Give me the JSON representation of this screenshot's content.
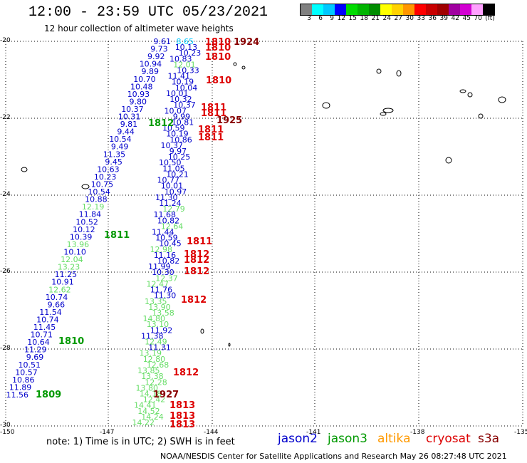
{
  "header": {
    "title": "12:00 - 23:59 UTC 05/23/2021",
    "subtitle": "12 hour collection of altimeter wave heights"
  },
  "colorbar": {
    "colors": [
      "#808080",
      "#00ffff",
      "#00c8ff",
      "#0000ff",
      "#00dc00",
      "#00b400",
      "#008c00",
      "#ffff00",
      "#ffd200",
      "#ff9600",
      "#ff0000",
      "#c80000",
      "#a00000",
      "#a000a0",
      "#d200d2",
      "#ffa0ff",
      "#000000"
    ],
    "labels": [
      "3",
      "6",
      "9",
      "12",
      "15",
      "18",
      "21",
      "24",
      "27",
      "30",
      "33",
      "36",
      "39",
      "42",
      "45",
      "70",
      "(ft)"
    ]
  },
  "axes": {
    "lat_labels": [
      "-20",
      "-22",
      "-24",
      "-26",
      "-28",
      "-30"
    ],
    "lon_labels": [
      "-150",
      "-147",
      "-144",
      "-141",
      "-138",
      "-135"
    ]
  },
  "legend": [
    {
      "name": "jason2",
      "color": "#0000cc"
    },
    {
      "name": "jason3",
      "color": "#009900"
    },
    {
      "name": "altika",
      "color": "#ff9900"
    },
    {
      "name": "cryosat",
      "color": "#dd0000"
    },
    {
      "name": "s3a",
      "color": "#880000"
    }
  ],
  "footer": {
    "note": "note: 1) Time is in UTC; 2) SWH is in feet",
    "credit": "NOAA/NESDIS Center for Satellite Applications and Research May 26 08:27:48 UTC 2021"
  },
  "track_a": {
    "color_default": "#0000cc",
    "values": [
      [
        "9.61",
        "#0000cc"
      ],
      [
        "9.73",
        "#0000cc"
      ],
      [
        "9.92",
        "#0000cc"
      ],
      [
        "10.94",
        "#0000cc"
      ],
      [
        "9.89",
        "#0000cc"
      ],
      [
        "10.70",
        "#0000cc"
      ],
      [
        "10.48",
        "#0000cc"
      ],
      [
        "10.93",
        "#0000cc"
      ],
      [
        "9.80",
        "#0000cc"
      ],
      [
        "10.37",
        "#0000cc"
      ],
      [
        "10.31",
        "#0000cc"
      ],
      [
        "9.81",
        "#0000cc"
      ],
      [
        "9.44",
        "#0000cc"
      ],
      [
        "10.54",
        "#0000cc"
      ],
      [
        "9.49",
        "#0000cc"
      ],
      [
        "11.35",
        "#0000cc"
      ],
      [
        "9.45",
        "#0000cc"
      ],
      [
        "10.63",
        "#0000cc"
      ],
      [
        "10.23",
        "#0000cc"
      ],
      [
        "10.75",
        "#0000cc"
      ],
      [
        "10.54",
        "#0000cc"
      ],
      [
        "10.88",
        "#0000cc"
      ],
      [
        "12.19",
        "#66dd66"
      ],
      [
        "11.84",
        "#0000cc"
      ],
      [
        "10.52",
        "#0000cc"
      ],
      [
        "10.12",
        "#0000cc"
      ],
      [
        "10.39",
        "#0000cc"
      ],
      [
        "13.96",
        "#66dd66"
      ],
      [
        "10.10",
        "#0000cc"
      ],
      [
        "12.04",
        "#66dd66"
      ],
      [
        "13.23",
        "#66dd66"
      ],
      [
        "11.25",
        "#0000cc"
      ],
      [
        "10.91",
        "#0000cc"
      ],
      [
        "12.62",
        "#66dd66"
      ],
      [
        "10.74",
        "#0000cc"
      ],
      [
        "9.66",
        "#0000cc"
      ],
      [
        "11.54",
        "#0000cc"
      ],
      [
        "10.74",
        "#0000cc"
      ],
      [
        "11.45",
        "#0000cc"
      ],
      [
        "10.71",
        "#0000cc"
      ],
      [
        "10.64",
        "#0000cc"
      ],
      [
        "11.29",
        "#0000cc"
      ],
      [
        "9.69",
        "#0000cc"
      ],
      [
        "10.51",
        "#0000cc"
      ],
      [
        "10.57",
        "#0000cc"
      ],
      [
        "10.86",
        "#0000cc"
      ],
      [
        "11.89",
        "#0000cc"
      ],
      [
        "11.56",
        "#0000cc"
      ]
    ]
  },
  "track_b": {
    "values": [
      [
        "8.65",
        "#00c8ff"
      ],
      [
        "10.13",
        "#0000cc"
      ],
      [
        "10.23",
        "#0000cc"
      ],
      [
        "10.83",
        "#0000cc"
      ],
      [
        "12.01",
        "#66dd66"
      ],
      [
        "10.33",
        "#0000cc"
      ],
      [
        "11.41",
        "#0000cc"
      ],
      [
        "10.19",
        "#0000cc"
      ],
      [
        "10.04",
        "#0000cc"
      ],
      [
        "10.01",
        "#0000cc"
      ],
      [
        "10.32",
        "#0000cc"
      ],
      [
        "10.37",
        "#0000cc"
      ],
      [
        "10.07",
        "#0000cc"
      ],
      [
        "9.99",
        "#0000cc"
      ],
      [
        "10.81",
        "#0000cc"
      ],
      [
        "10.59",
        "#0000cc"
      ],
      [
        "10.19",
        "#0000cc"
      ],
      [
        "10.86",
        "#0000cc"
      ],
      [
        "10.37",
        "#0000cc"
      ],
      [
        "9.97",
        "#0000cc"
      ],
      [
        "10.25",
        "#0000cc"
      ],
      [
        "10.50",
        "#0000cc"
      ],
      [
        "11.05",
        "#0000cc"
      ],
      [
        "10.21",
        "#0000cc"
      ],
      [
        "10.77",
        "#0000cc"
      ],
      [
        "10.01",
        "#0000cc"
      ],
      [
        "10.97",
        "#0000cc"
      ],
      [
        "11.30",
        "#0000cc"
      ],
      [
        "11.24",
        "#0000cc"
      ],
      [
        "12.79",
        "#66dd66"
      ],
      [
        "11.68",
        "#0000cc"
      ],
      [
        "10.82",
        "#0000cc"
      ],
      [
        "12.64",
        "#66dd66"
      ],
      [
        "11.44",
        "#0000cc"
      ],
      [
        "10.59",
        "#0000cc"
      ],
      [
        "10.45",
        "#0000cc"
      ],
      [
        "12.98",
        "#66dd66"
      ],
      [
        "11.16",
        "#0000cc"
      ],
      [
        "10.82",
        "#0000cc"
      ],
      [
        "11.99",
        "#0000cc"
      ],
      [
        "10.30",
        "#0000cc"
      ],
      [
        "12.37",
        "#66dd66"
      ],
      [
        "12.47",
        "#66dd66"
      ],
      [
        "11.76",
        "#0000cc"
      ],
      [
        "11.30",
        "#0000cc"
      ],
      [
        "13.35",
        "#66dd66"
      ],
      [
        "13.90",
        "#66dd66"
      ],
      [
        "13.58",
        "#66dd66"
      ],
      [
        "14.80",
        "#66dd66"
      ],
      [
        "13.10",
        "#66dd66"
      ],
      [
        "11.92",
        "#0000cc"
      ],
      [
        "11.38",
        "#0000cc"
      ],
      [
        "12.49",
        "#66dd66"
      ],
      [
        "11.31",
        "#0000cc"
      ],
      [
        "13.19",
        "#66dd66"
      ],
      [
        "12.80",
        "#66dd66"
      ],
      [
        "12.68",
        "#66dd66"
      ],
      [
        "13.85",
        "#66dd66"
      ],
      [
        "13.38",
        "#66dd66"
      ],
      [
        "12.28",
        "#66dd66"
      ],
      [
        "13.80",
        "#66dd66"
      ],
      [
        "14.18",
        "#66dd66"
      ],
      [
        "12.42",
        "#66dd66"
      ],
      [
        "14.41",
        "#66dd66"
      ],
      [
        "14.52",
        "#66dd66"
      ],
      [
        "14.24",
        "#66dd66"
      ],
      [
        "14.22",
        "#66dd66"
      ]
    ]
  },
  "time_labels": [
    {
      "text": "1924",
      "color": "#880000"
    },
    {
      "text": "1810",
      "color": "#dd0000"
    },
    {
      "text": "1810",
      "color": "#dd0000"
    },
    {
      "text": "1810",
      "color": "#dd0000"
    },
    {
      "text": "1810",
      "color": "#dd0000"
    },
    {
      "text": "1811",
      "color": "#dd0000"
    },
    {
      "text": "1811",
      "color": "#dd0000"
    },
    {
      "text": "1925",
      "color": "#880000"
    },
    {
      "text": "1812",
      "color": "#009900"
    },
    {
      "text": "1811",
      "color": "#dd0000"
    },
    {
      "text": "1811",
      "color": "#dd0000"
    },
    {
      "text": "1811",
      "color": "#009900"
    },
    {
      "text": "1811",
      "color": "#dd0000"
    },
    {
      "text": "1812",
      "color": "#dd0000"
    },
    {
      "text": "1812",
      "color": "#dd0000"
    },
    {
      "text": "1812",
      "color": "#dd0000"
    },
    {
      "text": "1812",
      "color": "#dd0000"
    },
    {
      "text": "1810",
      "color": "#009900"
    },
    {
      "text": "1812",
      "color": "#dd0000"
    },
    {
      "text": "1809",
      "color": "#009900"
    },
    {
      "text": "1927",
      "color": "#880000"
    },
    {
      "text": "1813",
      "color": "#dd0000"
    },
    {
      "text": "1813",
      "color": "#dd0000"
    },
    {
      "text": "1813",
      "color": "#dd0000"
    }
  ]
}
